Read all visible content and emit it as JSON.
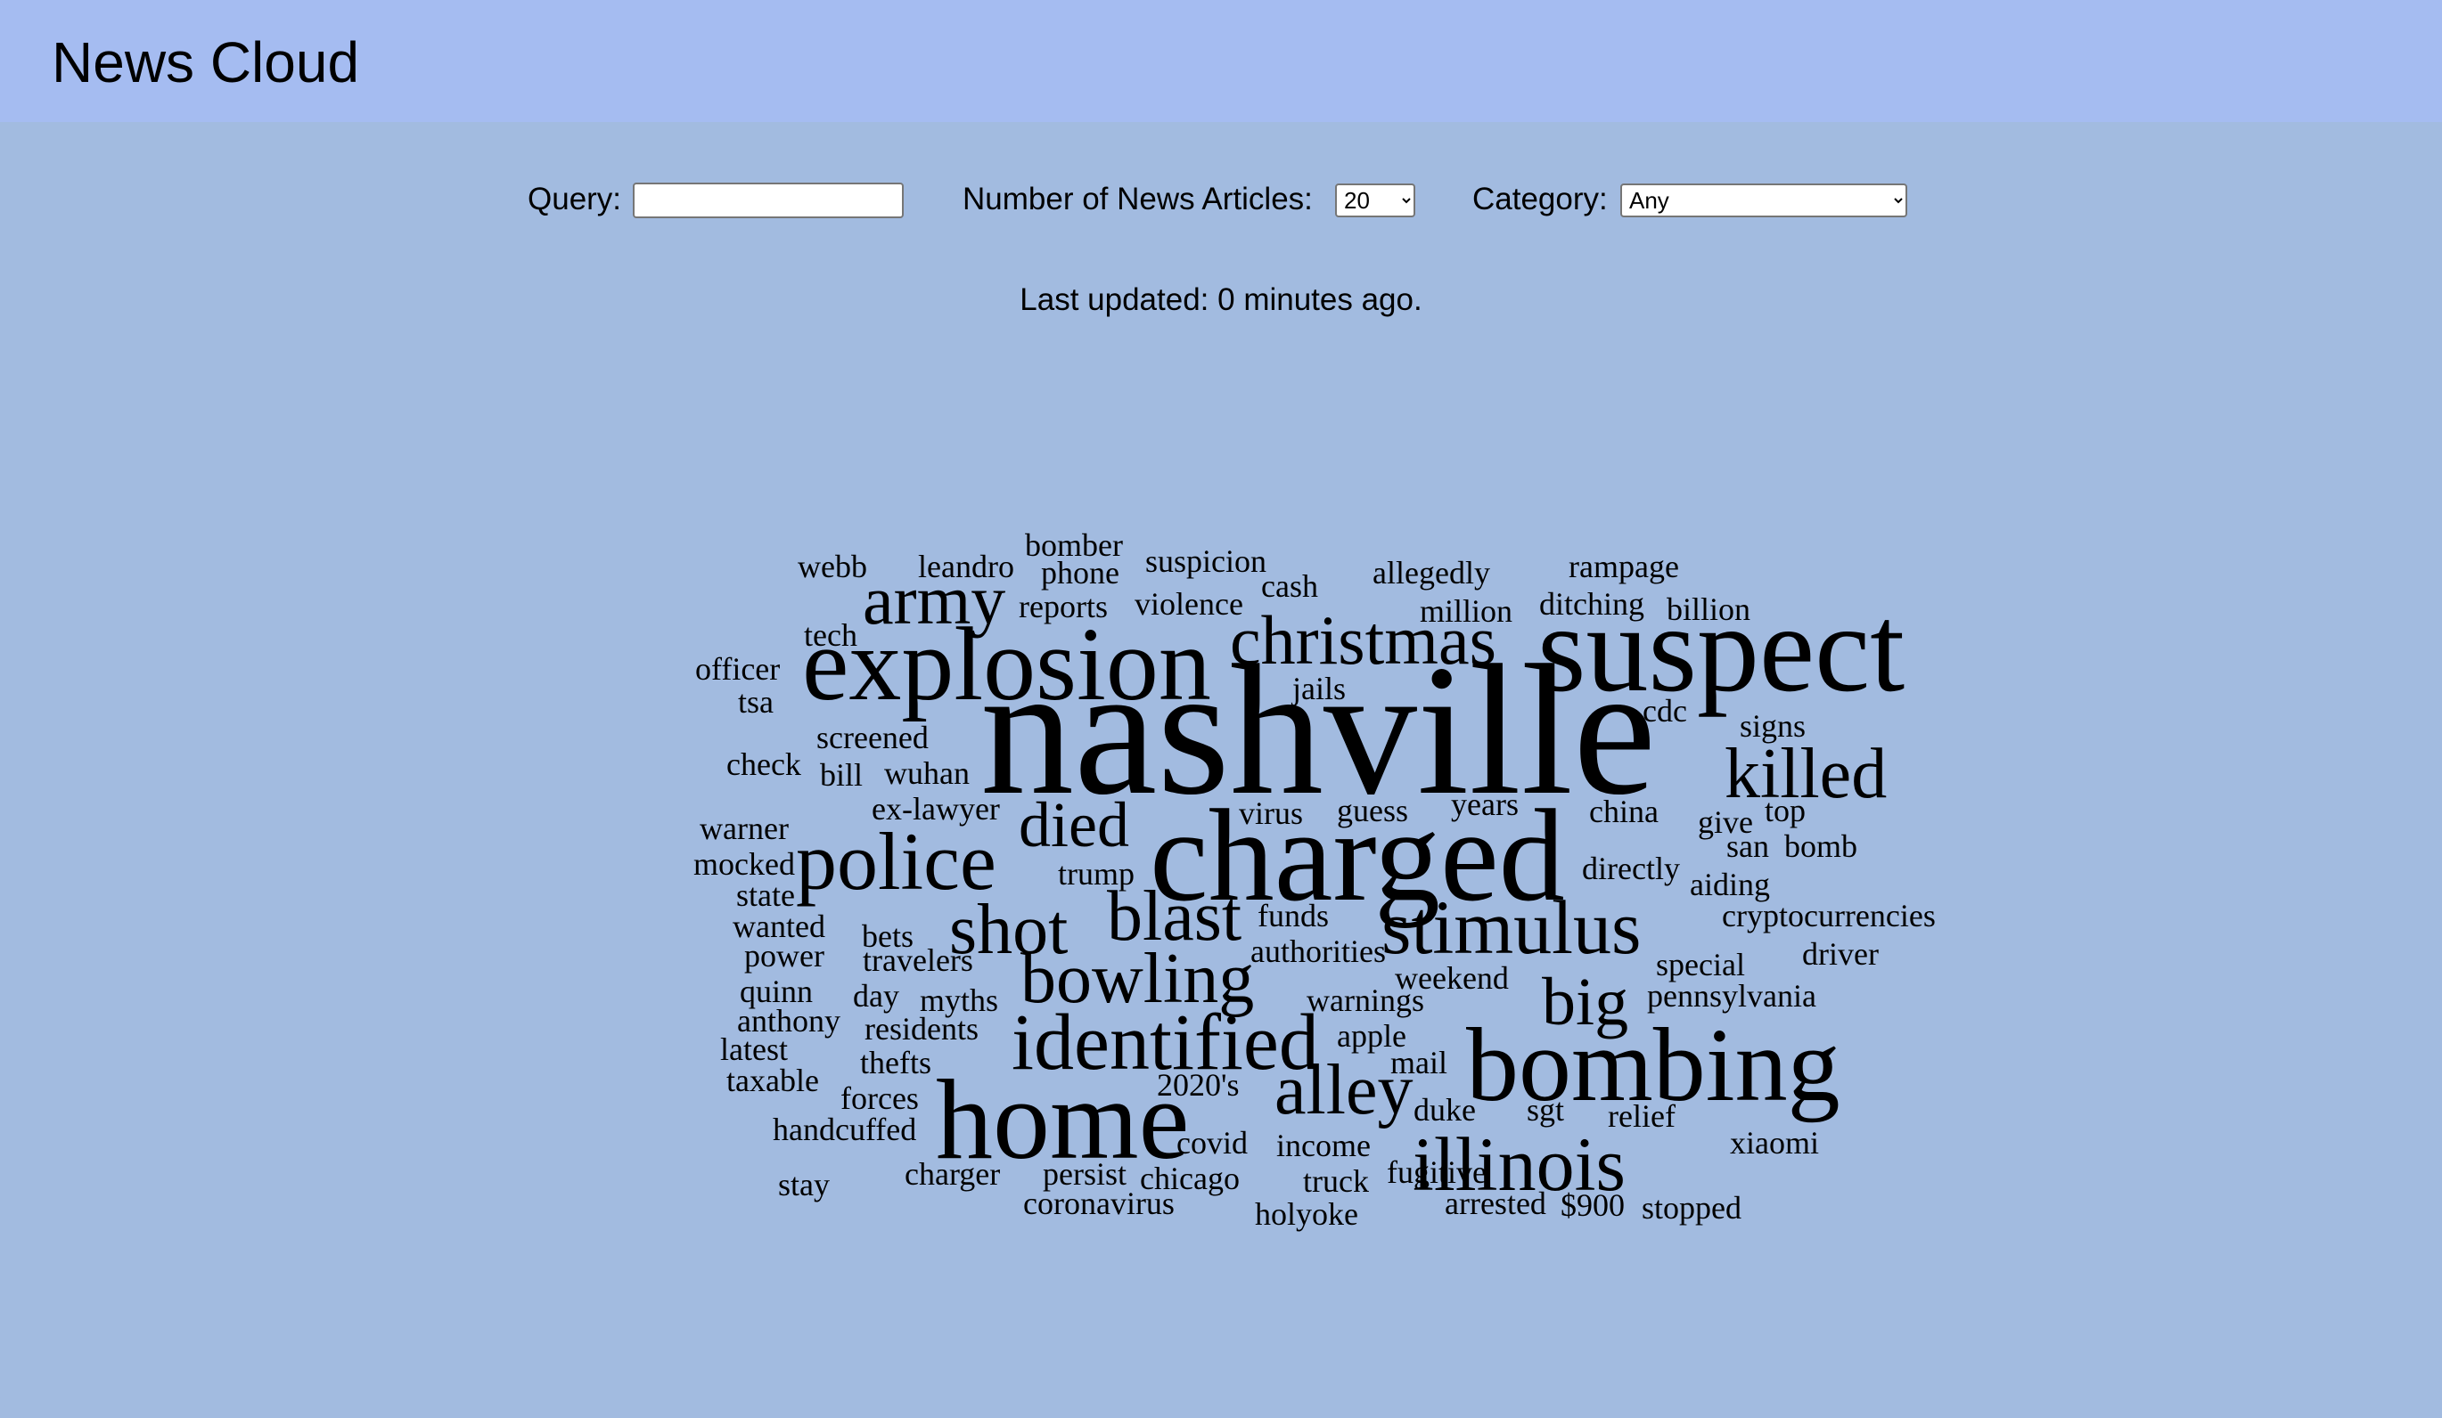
{
  "header": {
    "title": "News Cloud"
  },
  "controls": {
    "query_label": "Query:",
    "query_value": "",
    "articles_label": "Number of News Articles:",
    "articles_value": "20",
    "category_label": "Category:",
    "category_value": "Any"
  },
  "status": {
    "last_updated": "Last updated: 0 minutes ago."
  },
  "word_cloud": {
    "words": [
      "nashville",
      "charged",
      "suspect",
      "explosion",
      "bombing",
      "home",
      "identified",
      "police",
      "christmas",
      "stimulus",
      "killed",
      "illinois",
      "alley",
      "blast",
      "shot",
      "bowling",
      "army",
      "big",
      "died",
      "webb",
      "leandro",
      "bomber",
      "phone",
      "suspicion",
      "cash",
      "allegedly",
      "rampage",
      "reports",
      "violence",
      "million",
      "ditching",
      "billion",
      "tech",
      "officer",
      "tsa",
      "jails",
      "cdc",
      "signs",
      "screened",
      "check",
      "bill",
      "wuhan",
      "ex-lawyer",
      "virus",
      "guess",
      "years",
      "china",
      "give",
      "top",
      "warner",
      "mocked",
      "san",
      "bomb",
      "trump",
      "directly",
      "state",
      "aiding",
      "wanted",
      "bets",
      "funds",
      "cryptocurrencies",
      "power",
      "travelers",
      "authorities",
      "special",
      "driver",
      "quinn",
      "day",
      "myths",
      "weekend",
      "warnings",
      "pennsylvania",
      "anthony",
      "residents",
      "apple",
      "latest",
      "thefts",
      "mail",
      "taxable",
      "2020's",
      "forces",
      "duke",
      "sgt",
      "relief",
      "handcuffed",
      "covid",
      "income",
      "xiaomi",
      "charger",
      "persist",
      "chicago",
      "truck",
      "fugitive",
      "stay",
      "coronavirus",
      "holyoke",
      "arrested",
      "$900",
      "stopped"
    ]
  }
}
